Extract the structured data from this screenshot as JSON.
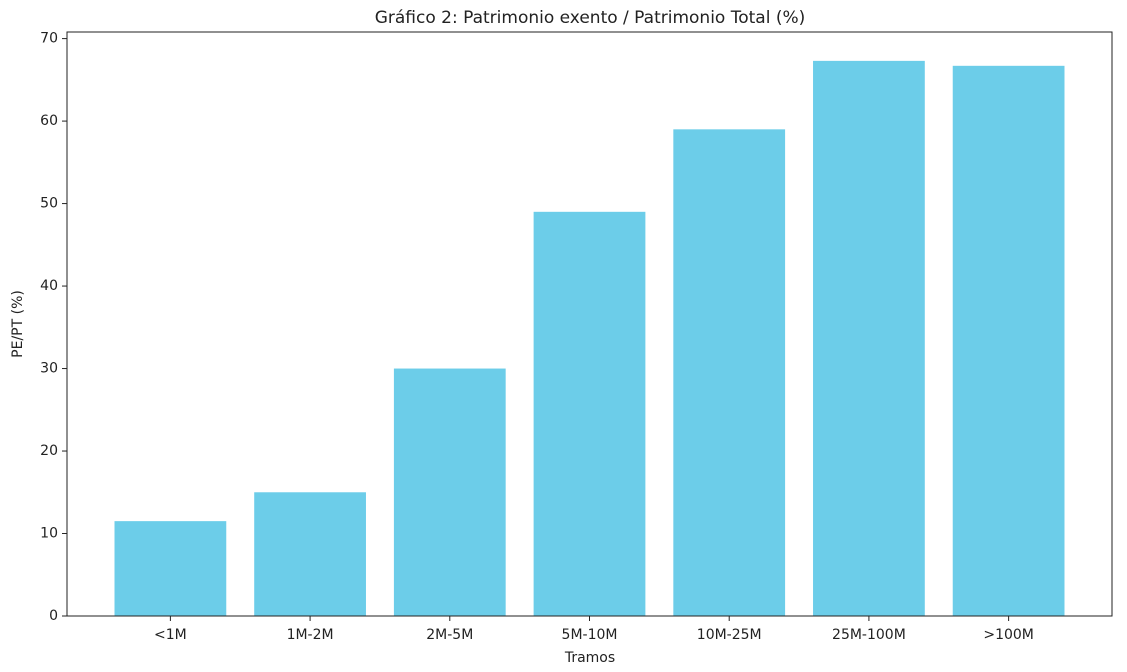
{
  "chart_data": {
    "type": "bar",
    "title": "Gráfico 2: Patrimonio exento / Patrimonio Total (%)",
    "x_label": "Tramos",
    "y_label": "PE/PT (%)",
    "categories": [
      "<1M",
      "1M-2M",
      "2M-5M",
      "5M-10M",
      "10M-25M",
      "25M-100M",
      ">100M"
    ],
    "values": [
      11.5,
      15.0,
      30.0,
      49.0,
      59.0,
      67.3,
      66.7
    ],
    "color": "#6ccde9",
    "ylim": [
      0,
      70.8
    ],
    "yticks": [
      0,
      10,
      20,
      30,
      40,
      50,
      60,
      70
    ],
    "grid": false
  }
}
